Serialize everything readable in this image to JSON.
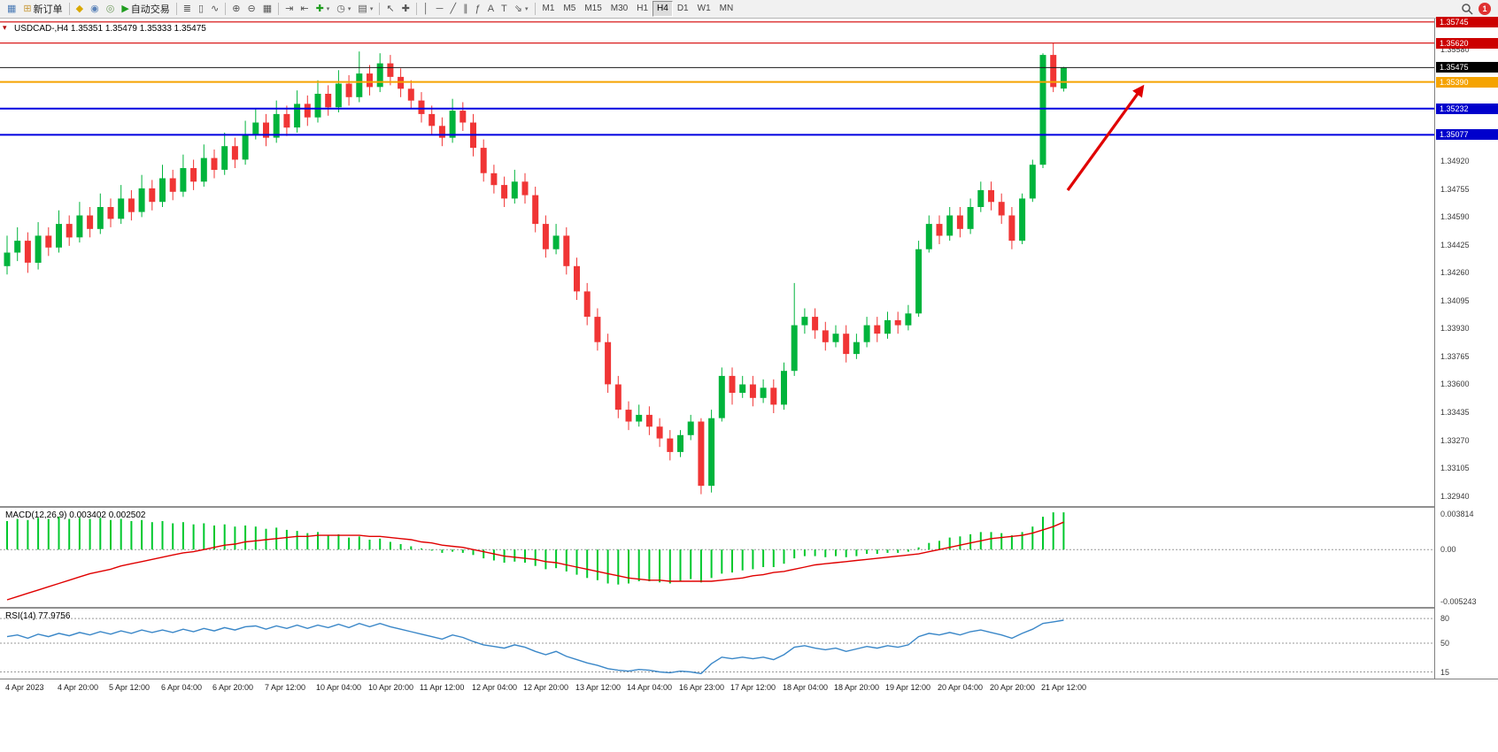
{
  "toolbar": {
    "labels": {
      "new_order": "新订单",
      "autotrading": "自动交易"
    },
    "groups": [
      {
        "items": [
          {
            "name": "new-chart-button",
            "glyph": "▦",
            "color": "#4a7ab5"
          },
          {
            "name": "new-order-button",
            "glyph": "⊞",
            "color": "#c89a3c",
            "label_key": "new_order"
          }
        ]
      },
      {
        "items": [
          {
            "name": "metaeditor-icon",
            "glyph": "◆",
            "color": "#d9a800"
          },
          {
            "name": "market-watch-icon",
            "glyph": "◉",
            "color": "#5a82b8"
          },
          {
            "name": "navigator-icon",
            "glyph": "◎",
            "color": "#6f9a5e"
          },
          {
            "name": "autotrading-button",
            "glyph": "▶",
            "color": "#1f9d1f",
            "label_key": "autotrading"
          }
        ]
      },
      {
        "items": [
          {
            "name": "bar-chart-icon",
            "glyph": "≣",
            "color": "#555555"
          },
          {
            "name": "candlestick-chart-icon",
            "glyph": "▯",
            "color": "#555555"
          },
          {
            "name": "line-chart-icon",
            "glyph": "∿",
            "color": "#555555"
          }
        ]
      },
      {
        "items": [
          {
            "name": "zoom-in-button",
            "glyph": "⊕",
            "color": "#555555"
          },
          {
            "name": "zoom-out-button",
            "glyph": "⊖",
            "color": "#555555"
          },
          {
            "name": "tile-windows-icon",
            "glyph": "▦",
            "color": "#555555"
          }
        ]
      },
      {
        "items": [
          {
            "name": "auto-scroll-icon",
            "glyph": "⇥",
            "color": "#555555"
          },
          {
            "name": "chart-shift-icon",
            "glyph": "⇤",
            "color": "#555555"
          },
          {
            "name": "indicators-button",
            "glyph": "✚",
            "color": "#1f9d1f",
            "dropdown": true
          },
          {
            "name": "periods-button",
            "glyph": "◷",
            "color": "#555555",
            "dropdown": true
          },
          {
            "name": "templates-button",
            "glyph": "▤",
            "color": "#555555",
            "dropdown": true
          }
        ]
      },
      {
        "items": [
          {
            "name": "cursor-icon",
            "glyph": "↖",
            "color": "#555555"
          },
          {
            "name": "crosshair-icon",
            "glyph": "✚",
            "color": "#555555"
          }
        ]
      },
      {
        "items": [
          {
            "name": "vertical-line-icon",
            "glyph": "│",
            "color": "#555555"
          },
          {
            "name": "horizontal-line-icon",
            "glyph": "─",
            "color": "#555555"
          },
          {
            "name": "trendline-icon",
            "glyph": "╱",
            "color": "#555555"
          },
          {
            "name": "equidistant-channel-icon",
            "glyph": "∥",
            "color": "#555555"
          },
          {
            "name": "fibonacci-icon",
            "glyph": "ƒ",
            "color": "#555555"
          },
          {
            "name": "text-icon",
            "glyph": "A",
            "color": "#555555"
          },
          {
            "name": "text-label-icon",
            "glyph": "T",
            "color": "#555555"
          },
          {
            "name": "arrows-tool-button",
            "glyph": "⇘",
            "color": "#555555",
            "dropdown": true
          }
        ]
      }
    ],
    "timeframes": [
      "M1",
      "M5",
      "M15",
      "M30",
      "H1",
      "H4",
      "D1",
      "W1",
      "MN"
    ],
    "active_timeframe": "H4",
    "notification_count": "1"
  },
  "chart": {
    "header": "USDCAD-,H4  1.35351 1.35479 1.35333 1.35475",
    "window_marker": "▾"
  },
  "macd": {
    "label": "MACD(12,26,9) 0.003402 0.002502",
    "axis": [
      "0.003814",
      "0.00",
      "-0.005243"
    ]
  },
  "rsi": {
    "label": "RSI(14) 77.9756",
    "levels": [
      "80",
      "50",
      "15"
    ]
  },
  "chart_data": {
    "type": "candlestick",
    "symbol": "USDCAD-",
    "timeframe": "H4",
    "ohlc_current": {
      "open": 1.35351,
      "high": 1.35479,
      "low": 1.35333,
      "close": 1.35475
    },
    "ylim": [
      1.3288,
      1.35765
    ],
    "up_color": "#00b43c",
    "down_color": "#f03535",
    "price_ticks": [
      1.3558,
      1.3492,
      1.34755,
      1.3459,
      1.34425,
      1.3426,
      1.34095,
      1.3393,
      1.33765,
      1.336,
      1.33435,
      1.3327,
      1.33105,
      1.3294
    ],
    "price_badges": [
      {
        "price": 1.35745,
        "color": "#cc0000"
      },
      {
        "price": 1.3562,
        "color": "#cc0000"
      },
      {
        "price": 1.35475,
        "color": "#000000"
      },
      {
        "price": 1.3539,
        "color": "#f5a300"
      },
      {
        "price": 1.35232,
        "color": "#0000cc"
      },
      {
        "price": 1.35077,
        "color": "#0000cc"
      }
    ],
    "hlines": [
      {
        "price": 1.35745,
        "color": "#d40000",
        "width": 1.2
      },
      {
        "price": 1.3562,
        "color": "#d40000",
        "width": 1.2
      },
      {
        "price": 1.35475,
        "color": "#1a1a1a",
        "width": 1
      },
      {
        "price": 1.3539,
        "color": "#f5a300",
        "width": 2
      },
      {
        "price": 1.35232,
        "color": "#0000e0",
        "width": 2
      },
      {
        "price": 1.35077,
        "color": "#0000e0",
        "width": 2
      }
    ],
    "arrow": {
      "from": [
        1206,
        194
      ],
      "to": [
        1290,
        78
      ],
      "color": "#e00000"
    },
    "time_labels": [
      "4 Apr 2023",
      "4 Apr 20:00",
      "5 Apr 12:00",
      "6 Apr 04:00",
      "6 Apr 20:00",
      "7 Apr 12:00",
      "10 Apr 04:00",
      "10 Apr 20:00",
      "11 Apr 12:00",
      "12 Apr 04:00",
      "12 Apr 20:00",
      "13 Apr 12:00",
      "14 Apr 04:00",
      "16 Apr 23:00",
      "17 Apr 12:00",
      "18 Apr 04:00",
      "18 Apr 20:00",
      "19 Apr 12:00",
      "20 Apr 04:00",
      "20 Apr 20:00",
      "21 Apr 12:00"
    ],
    "label_every": 5,
    "candles": [
      [
        1.343,
        1.3448,
        1.3425,
        1.3438
      ],
      [
        1.3438,
        1.3453,
        1.3433,
        1.3445
      ],
      [
        1.3445,
        1.345,
        1.3426,
        1.3432
      ],
      [
        1.3432,
        1.3456,
        1.3428,
        1.3448
      ],
      [
        1.3448,
        1.3453,
        1.3436,
        1.3441
      ],
      [
        1.3441,
        1.3463,
        1.3438,
        1.3455
      ],
      [
        1.3455,
        1.346,
        1.3442,
        1.3447
      ],
      [
        1.3447,
        1.3468,
        1.3444,
        1.346
      ],
      [
        1.346,
        1.3465,
        1.3447,
        1.3452
      ],
      [
        1.3452,
        1.3473,
        1.3449,
        1.3465
      ],
      [
        1.3465,
        1.347,
        1.3453,
        1.3458
      ],
      [
        1.3458,
        1.3478,
        1.3455,
        1.347
      ],
      [
        1.347,
        1.3475,
        1.3457,
        1.3462
      ],
      [
        1.3462,
        1.3484,
        1.3459,
        1.3476
      ],
      [
        1.3476,
        1.3481,
        1.3463,
        1.3468
      ],
      [
        1.3468,
        1.349,
        1.3465,
        1.3482
      ],
      [
        1.3482,
        1.3487,
        1.3469,
        1.3474
      ],
      [
        1.3474,
        1.3496,
        1.3471,
        1.3488
      ],
      [
        1.3488,
        1.3493,
        1.3475,
        1.348
      ],
      [
        1.348,
        1.3502,
        1.3477,
        1.3494
      ],
      [
        1.3494,
        1.3499,
        1.3482,
        1.3487
      ],
      [
        1.3487,
        1.3509,
        1.3484,
        1.3501
      ],
      [
        1.3501,
        1.3506,
        1.3488,
        1.3493
      ],
      [
        1.3493,
        1.3516,
        1.349,
        1.3508
      ],
      [
        1.3508,
        1.3523,
        1.3505,
        1.3515
      ],
      [
        1.3515,
        1.352,
        1.3501,
        1.3506
      ],
      [
        1.3506,
        1.3528,
        1.3503,
        1.352
      ],
      [
        1.352,
        1.3525,
        1.3507,
        1.3512
      ],
      [
        1.3512,
        1.3534,
        1.3509,
        1.3526
      ],
      [
        1.3526,
        1.3531,
        1.3513,
        1.3518
      ],
      [
        1.3518,
        1.354,
        1.3515,
        1.3532
      ],
      [
        1.3532,
        1.3537,
        1.3519,
        1.3524
      ],
      [
        1.3524,
        1.3546,
        1.3521,
        1.3538
      ],
      [
        1.3538,
        1.3543,
        1.3525,
        1.353
      ],
      [
        1.353,
        1.3557,
        1.3527,
        1.3544
      ],
      [
        1.3544,
        1.3549,
        1.3531,
        1.3536
      ],
      [
        1.3536,
        1.3556,
        1.3533,
        1.355
      ],
      [
        1.355,
        1.3555,
        1.3537,
        1.3542
      ],
      [
        1.3542,
        1.3547,
        1.353,
        1.3535
      ],
      [
        1.3535,
        1.354,
        1.3523,
        1.3528
      ],
      [
        1.3528,
        1.3533,
        1.3515,
        1.352
      ],
      [
        1.352,
        1.3525,
        1.3508,
        1.3513
      ],
      [
        1.3513,
        1.3518,
        1.3501,
        1.3506
      ],
      [
        1.3506,
        1.3529,
        1.3503,
        1.3522
      ],
      [
        1.3522,
        1.3527,
        1.351,
        1.3515
      ],
      [
        1.3515,
        1.352,
        1.3495,
        1.35
      ],
      [
        1.35,
        1.3505,
        1.348,
        1.3485
      ],
      [
        1.3485,
        1.349,
        1.3473,
        1.3478
      ],
      [
        1.3478,
        1.3483,
        1.3465,
        1.347
      ],
      [
        1.347,
        1.3487,
        1.3467,
        1.348
      ],
      [
        1.348,
        1.3485,
        1.3467,
        1.3472
      ],
      [
        1.3472,
        1.3477,
        1.345,
        1.3455
      ],
      [
        1.3455,
        1.346,
        1.3435,
        1.344
      ],
      [
        1.344,
        1.3455,
        1.3437,
        1.3448
      ],
      [
        1.3448,
        1.3453,
        1.3425,
        1.343
      ],
      [
        1.343,
        1.3435,
        1.341,
        1.3415
      ],
      [
        1.3415,
        1.342,
        1.3395,
        1.34
      ],
      [
        1.34,
        1.3405,
        1.338,
        1.3385
      ],
      [
        1.3385,
        1.339,
        1.3355,
        1.336
      ],
      [
        1.336,
        1.3365,
        1.334,
        1.3345
      ],
      [
        1.3345,
        1.335,
        1.3333,
        1.3338
      ],
      [
        1.3338,
        1.3348,
        1.3335,
        1.3342
      ],
      [
        1.3342,
        1.3347,
        1.333,
        1.3335
      ],
      [
        1.3335,
        1.334,
        1.3323,
        1.3328
      ],
      [
        1.3328,
        1.3333,
        1.3315,
        1.332
      ],
      [
        1.332,
        1.3333,
        1.3317,
        1.333
      ],
      [
        1.333,
        1.3342,
        1.3327,
        1.3338
      ],
      [
        1.3338,
        1.334,
        1.3295,
        1.33
      ],
      [
        1.33,
        1.3345,
        1.3296,
        1.334
      ],
      [
        1.334,
        1.337,
        1.3338,
        1.3365
      ],
      [
        1.3365,
        1.337,
        1.3348,
        1.3355
      ],
      [
        1.3355,
        1.3365,
        1.3352,
        1.336
      ],
      [
        1.336,
        1.3365,
        1.3347,
        1.3352
      ],
      [
        1.3352,
        1.3363,
        1.3349,
        1.3358
      ],
      [
        1.3358,
        1.3363,
        1.3343,
        1.3348
      ],
      [
        1.3348,
        1.3373,
        1.3345,
        1.3368
      ],
      [
        1.3368,
        1.342,
        1.3365,
        1.3395
      ],
      [
        1.3395,
        1.3405,
        1.339,
        1.34
      ],
      [
        1.34,
        1.3405,
        1.3387,
        1.3392
      ],
      [
        1.3392,
        1.3397,
        1.338,
        1.3385
      ],
      [
        1.3385,
        1.3395,
        1.3382,
        1.339
      ],
      [
        1.339,
        1.3395,
        1.3373,
        1.3378
      ],
      [
        1.3378,
        1.339,
        1.3375,
        1.3385
      ],
      [
        1.3385,
        1.34,
        1.3382,
        1.3395
      ],
      [
        1.3395,
        1.34,
        1.3385,
        1.339
      ],
      [
        1.339,
        1.3403,
        1.3387,
        1.3398
      ],
      [
        1.3398,
        1.3403,
        1.339,
        1.3395
      ],
      [
        1.3395,
        1.3407,
        1.3392,
        1.3402
      ],
      [
        1.3402,
        1.3445,
        1.34,
        1.344
      ],
      [
        1.344,
        1.346,
        1.3438,
        1.3455
      ],
      [
        1.3455,
        1.346,
        1.3443,
        1.3448
      ],
      [
        1.3448,
        1.3465,
        1.3445,
        1.346
      ],
      [
        1.346,
        1.3465,
        1.3447,
        1.3452
      ],
      [
        1.3452,
        1.347,
        1.3449,
        1.3465
      ],
      [
        1.3465,
        1.348,
        1.3462,
        1.3475
      ],
      [
        1.3475,
        1.348,
        1.3463,
        1.3468
      ],
      [
        1.3468,
        1.3473,
        1.3455,
        1.346
      ],
      [
        1.346,
        1.3465,
        1.344,
        1.3445
      ],
      [
        1.3445,
        1.3473,
        1.3443,
        1.347
      ],
      [
        1.347,
        1.3493,
        1.3468,
        1.349
      ],
      [
        1.349,
        1.3556,
        1.3488,
        1.3555
      ],
      [
        1.3555,
        1.3562,
        1.3533,
        1.3536
      ],
      [
        1.35351,
        1.35479,
        1.35333,
        1.35475
      ]
    ],
    "macd": {
      "ylim": [
        -0.005243,
        0.003814
      ],
      "hist_color": "#00c82c",
      "signal_color": "#e00000",
      "histogram": [
        0.0026,
        0.0028,
        0.0027,
        0.0029,
        0.0028,
        0.003,
        0.0028,
        0.0029,
        0.0028,
        0.0029,
        0.0027,
        0.0028,
        0.0026,
        0.0027,
        0.0025,
        0.0026,
        0.0024,
        0.0025,
        0.0023,
        0.0024,
        0.0022,
        0.0023,
        0.0021,
        0.0022,
        0.0021,
        0.0019,
        0.002,
        0.0018,
        0.0017,
        0.0015,
        0.0016,
        0.0013,
        0.0014,
        0.0011,
        0.0012,
        0.0009,
        0.001,
        0.0007,
        0.0005,
        0.0003,
        0.0001,
        -0.0001,
        -0.0003,
        -0.0002,
        -0.0003,
        -0.0005,
        -0.0008,
        -0.001,
        -0.0012,
        -0.0011,
        -0.0012,
        -0.0015,
        -0.0018,
        -0.0017,
        -0.002,
        -0.0023,
        -0.0026,
        -0.0028,
        -0.0031,
        -0.0032,
        -0.0031,
        -0.0029,
        -0.0029,
        -0.003,
        -0.0031,
        -0.0029,
        -0.0027,
        -0.003,
        -0.0026,
        -0.0022,
        -0.0021,
        -0.0019,
        -0.0018,
        -0.0016,
        -0.0016,
        -0.0013,
        -0.0008,
        -0.0006,
        -0.0006,
        -0.0007,
        -0.0006,
        -0.0007,
        -0.0006,
        -0.0004,
        -0.0004,
        -0.0003,
        -0.0003,
        -0.0002,
        0.0002,
        0.0006,
        0.0008,
        0.0011,
        0.0012,
        0.0014,
        0.0016,
        0.0016,
        0.0015,
        0.0013,
        0.0016,
        0.0021,
        0.003,
        0.0034,
        0.003402
      ],
      "signal": [
        -0.0046,
        -0.0043,
        -0.004,
        -0.0037,
        -0.0034,
        -0.0031,
        -0.0028,
        -0.0025,
        -0.0022,
        -0.002,
        -0.0018,
        -0.0015,
        -0.0013,
        -0.0011,
        -0.0009,
        -0.0007,
        -0.0005,
        -0.0003,
        -0.0002,
        0.0,
        0.0002,
        0.0004,
        0.0005,
        0.0007,
        0.0008,
        0.0009,
        0.001,
        0.0011,
        0.0012,
        0.0012,
        0.0013,
        0.0013,
        0.0013,
        0.0013,
        0.0013,
        0.0012,
        0.0012,
        0.0011,
        0.001,
        0.0009,
        0.0007,
        0.0006,
        0.0004,
        0.0003,
        0.0002,
        0.0,
        -0.0002,
        -0.0004,
        -0.0006,
        -0.0007,
        -0.0008,
        -0.0009,
        -0.0011,
        -0.0012,
        -0.0014,
        -0.0016,
        -0.0018,
        -0.002,
        -0.0022,
        -0.0024,
        -0.0026,
        -0.0027,
        -0.0028,
        -0.0028,
        -0.0029,
        -0.0029,
        -0.0029,
        -0.0029,
        -0.0029,
        -0.0028,
        -0.0027,
        -0.0026,
        -0.0024,
        -0.0023,
        -0.0021,
        -0.002,
        -0.0018,
        -0.0016,
        -0.0014,
        -0.0013,
        -0.0012,
        -0.0011,
        -0.001,
        -0.0009,
        -0.0008,
        -0.0007,
        -0.0006,
        -0.0005,
        -0.0004,
        -0.0002,
        0.0,
        0.0002,
        0.0004,
        0.0006,
        0.0008,
        0.001,
        0.0011,
        0.0012,
        0.0013,
        0.0015,
        0.0018,
        0.0021,
        0.002502
      ]
    },
    "rsi": {
      "ylim": [
        8,
        92
      ],
      "levels": [
        80,
        50,
        15
      ],
      "color": "#3a87c8",
      "values": [
        58,
        60,
        56,
        61,
        58,
        62,
        59,
        63,
        60,
        64,
        61,
        65,
        62,
        66,
        63,
        66,
        63,
        67,
        64,
        68,
        65,
        69,
        66,
        70,
        71,
        67,
        71,
        68,
        72,
        68,
        72,
        69,
        73,
        69,
        74,
        70,
        74,
        70,
        67,
        64,
        61,
        58,
        55,
        60,
        57,
        52,
        48,
        46,
        44,
        48,
        45,
        40,
        36,
        40,
        34,
        30,
        26,
        23,
        19,
        17,
        16,
        18,
        17,
        15,
        14,
        16,
        15,
        13,
        25,
        33,
        31,
        33,
        31,
        33,
        30,
        36,
        45,
        47,
        44,
        42,
        44,
        40,
        43,
        46,
        44,
        47,
        45,
        48,
        58,
        62,
        60,
        63,
        60,
        64,
        66,
        63,
        60,
        56,
        62,
        67,
        74,
        76,
        77.9756
      ]
    }
  }
}
